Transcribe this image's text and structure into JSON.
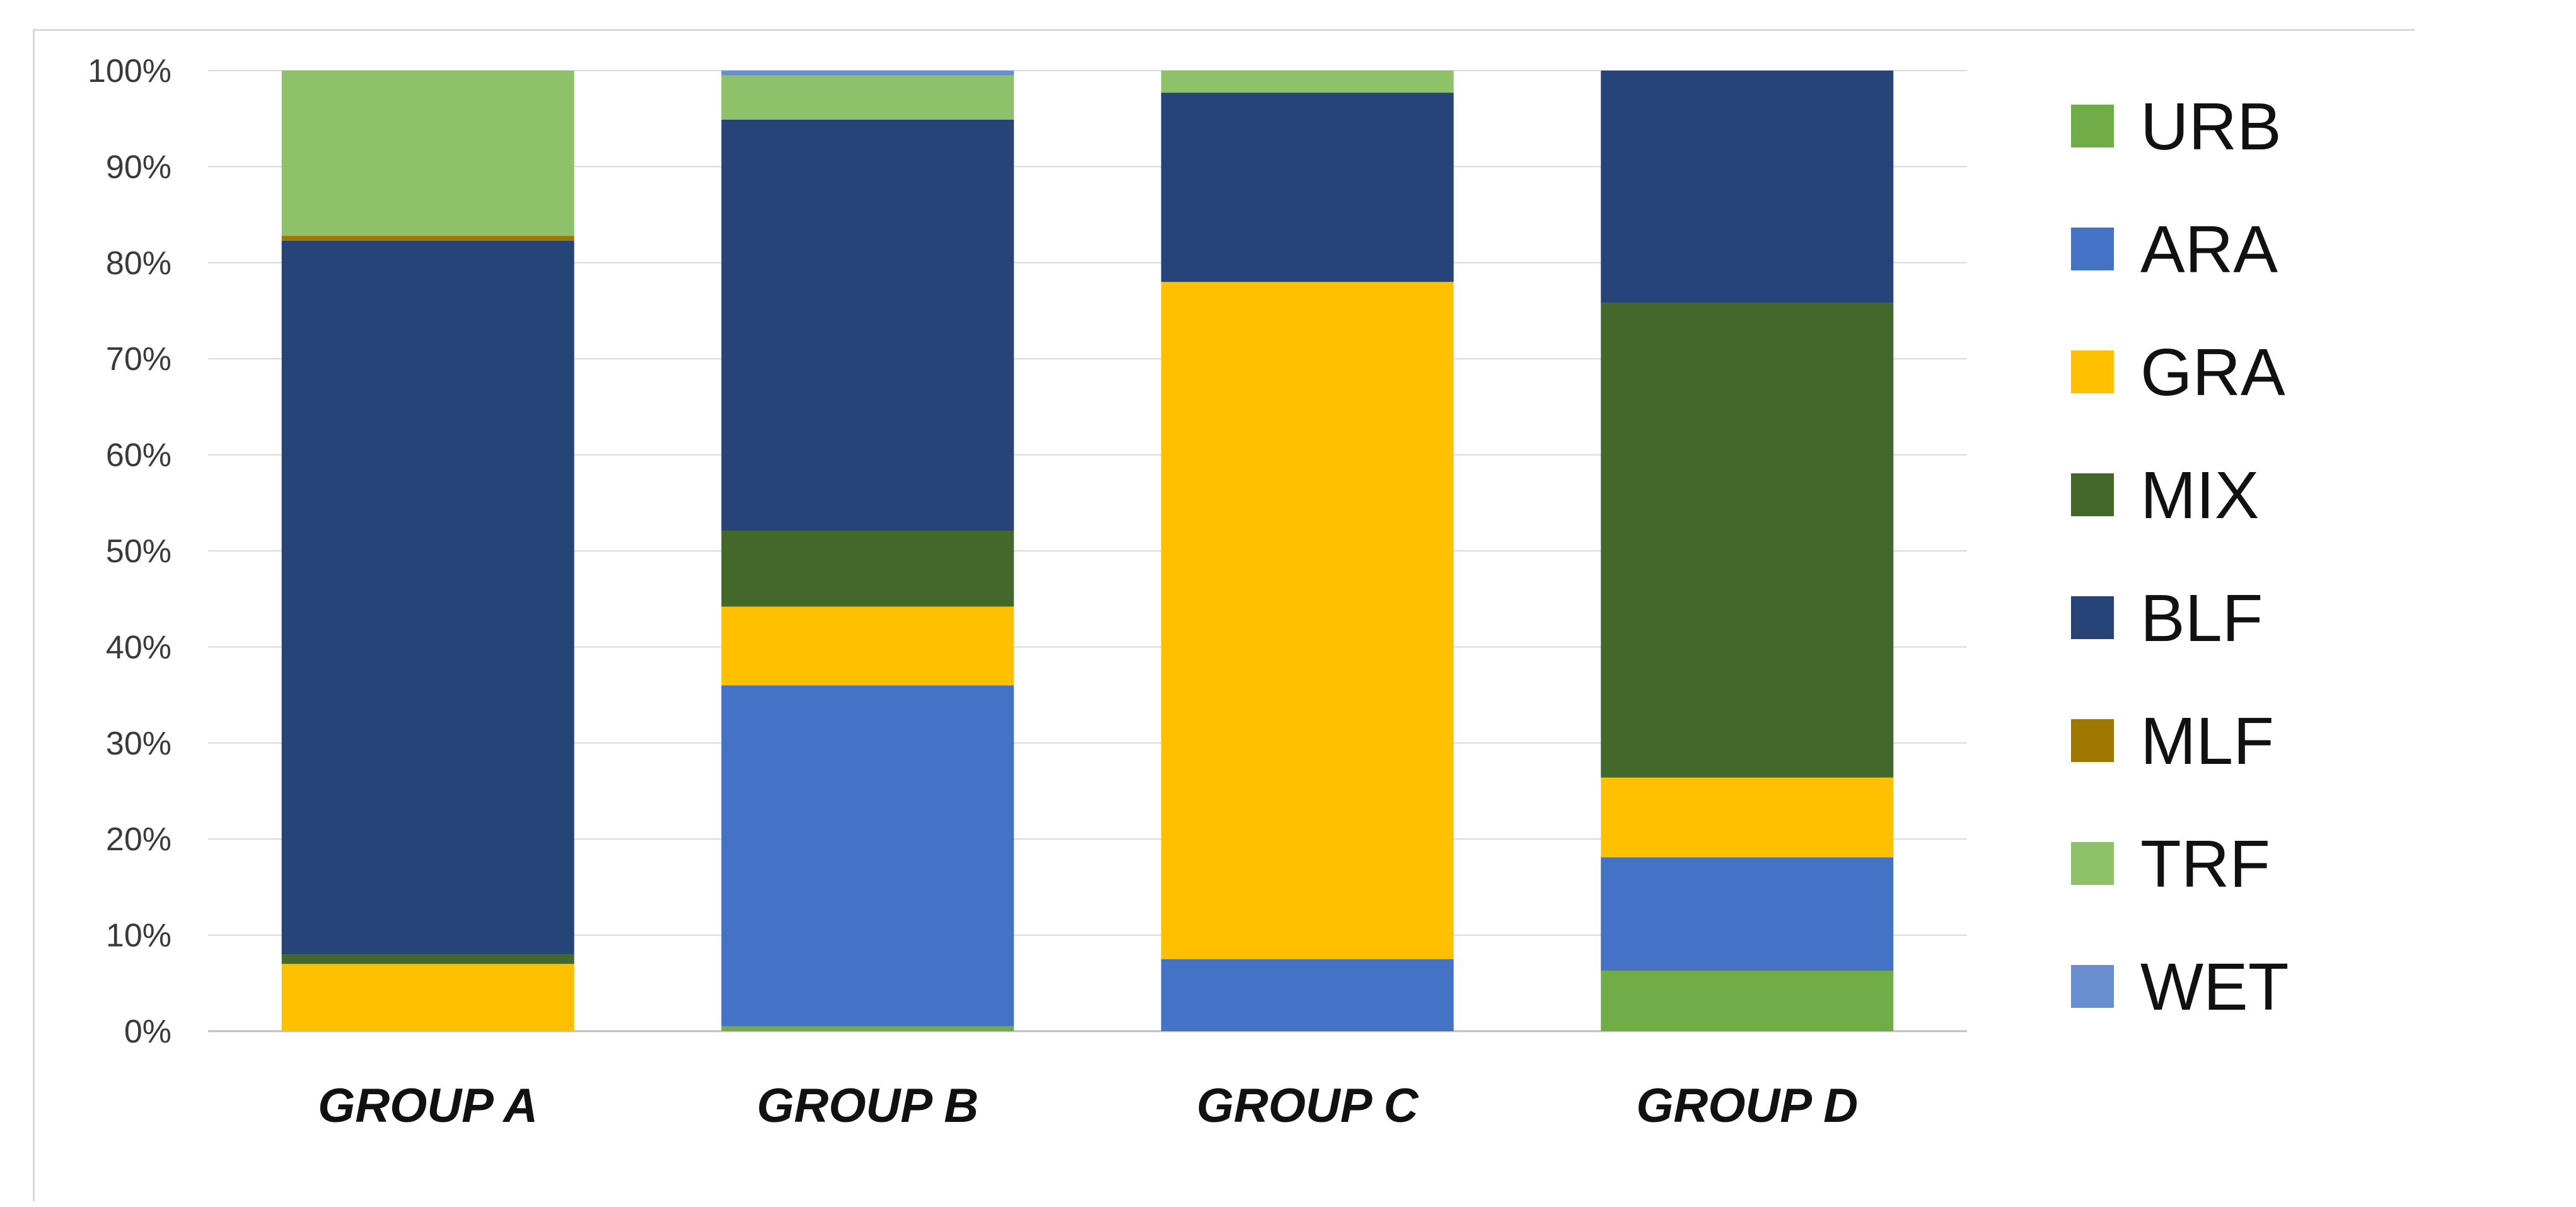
{
  "chart_data": {
    "type": "bar",
    "stacked": true,
    "normalized": true,
    "categories": [
      "GROUP A",
      "GROUP B",
      "GROUP C",
      "GROUP D"
    ],
    "series": [
      {
        "name": "URB",
        "color": "#70ad47",
        "values": [
          0.0,
          0.5,
          0.0,
          6.3
        ]
      },
      {
        "name": "ARA",
        "color": "#4472c4",
        "values": [
          0.0,
          35.5,
          7.5,
          11.8
        ]
      },
      {
        "name": "GRA",
        "color": "#ffc000",
        "values": [
          7.0,
          8.2,
          70.5,
          8.3
        ]
      },
      {
        "name": "MIX",
        "color": "#43682b",
        "values": [
          1.0,
          7.9,
          0.0,
          49.4
        ]
      },
      {
        "name": "BLF",
        "color": "#264478",
        "values": [
          74.3,
          42.8,
          19.7,
          24.2
        ]
      },
      {
        "name": "MLF",
        "color": "#9e7600",
        "values": [
          0.5,
          0.0,
          0.0,
          0.0
        ]
      },
      {
        "name": "TRF",
        "color": "#8fc16b",
        "values": [
          17.2,
          4.6,
          2.3,
          0.0
        ]
      },
      {
        "name": "WET",
        "color": "#698ed0",
        "values": [
          0.0,
          0.5,
          0.0,
          0.0
        ]
      }
    ],
    "yticks": [
      "0%",
      "10%",
      "20%",
      "30%",
      "40%",
      "50%",
      "60%",
      "70%",
      "80%",
      "90%",
      "100%"
    ],
    "ylim": [
      0,
      100
    ],
    "grid": true,
    "legend_position": "right"
  }
}
